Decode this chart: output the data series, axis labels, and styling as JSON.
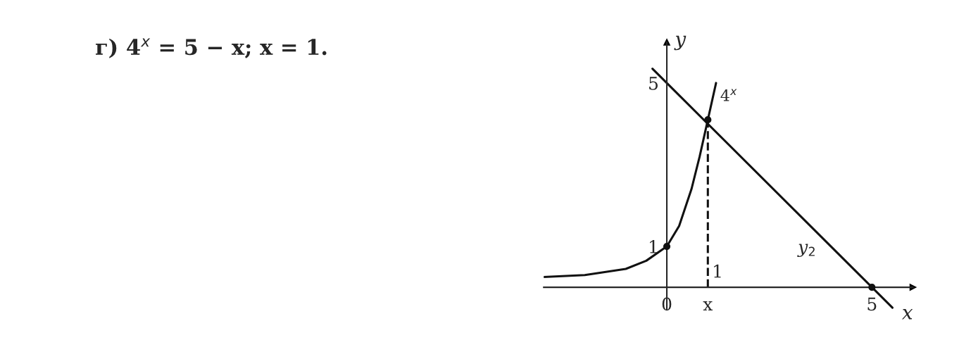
{
  "chart_data": {
    "type": "line",
    "title": "г) 4$^{x}$ = 5 − x; x = 1.",
    "xlabel": "x",
    "ylabel": "y",
    "xlim": [
      -3,
      6
    ],
    "ylim": [
      -0.55,
      6
    ],
    "xticks": [
      0,
      {
        "value": 1,
        "label": "x"
      },
      5
    ],
    "yticks": [
      1,
      5
    ],
    "grid": false,
    "series": [
      {
        "name": "4$^{x}$",
        "color": "#111111",
        "line_style": "solid",
        "marker": "none",
        "x": [
          -3,
          -2,
          -1,
          -0.5,
          0,
          0.3,
          0.6,
          0.8,
          1,
          1.2
        ],
        "values": [
          0.25,
          0.3,
          0.45,
          0.65,
          1,
          1.5,
          2.4,
          3.2,
          4.1,
          5.0
        ]
      },
      {
        "name": "y$_{2}$",
        "color": "#111111",
        "line_style": "solid",
        "marker": "none",
        "x": [
          -0.35,
          5.5
        ],
        "values": [
          5.35,
          -0.5
        ]
      },
      {
        "type": "line",
        "color": "#111111",
        "line_style": "dashed",
        "marker": "none",
        "x": [
          1,
          1
        ],
        "values": [
          0,
          4.1
        ]
      },
      {
        "type": "scatter",
        "color": "#111111",
        "marker": "circle",
        "x": [
          0,
          1,
          5
        ],
        "values": [
          1,
          4.1,
          0
        ]
      }
    ],
    "annotations": [
      "1"
    ]
  }
}
